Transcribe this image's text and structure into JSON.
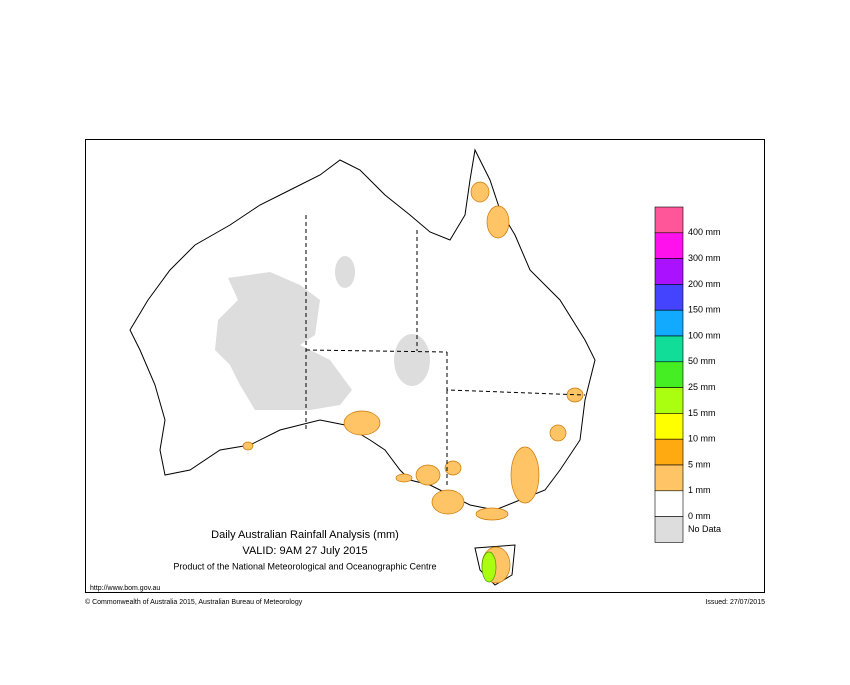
{
  "header": {
    "title": "Daily Australian Rainfall Analysis (mm)",
    "valid": "VALID: 9AM 27 July 2015",
    "product": "Product of the National Meteorological and Oceanographic Centre"
  },
  "legend": {
    "swatches": [
      "#ff5599",
      "#ff11ee",
      "#aa11ff",
      "#4444ff",
      "#11aaff",
      "#11dd99",
      "#44ee22",
      "#aaff11",
      "#ffff00",
      "#ffaa11",
      "#ffc466",
      "#ffffff",
      "#dddddd"
    ],
    "labels": [
      "400 mm",
      "300 mm",
      "200 mm",
      "150 mm",
      "100 mm",
      "50 mm",
      "25 mm",
      "15 mm",
      "10 mm",
      "5 mm",
      "1 mm",
      "0 mm",
      "No Data"
    ]
  },
  "footer": {
    "url": "http://www.bom.gov.au",
    "copyright": "© Commonwealth of Australia 2015, Australian Bureau of Meteorology",
    "issued": "Issued: 27/07/2015"
  }
}
